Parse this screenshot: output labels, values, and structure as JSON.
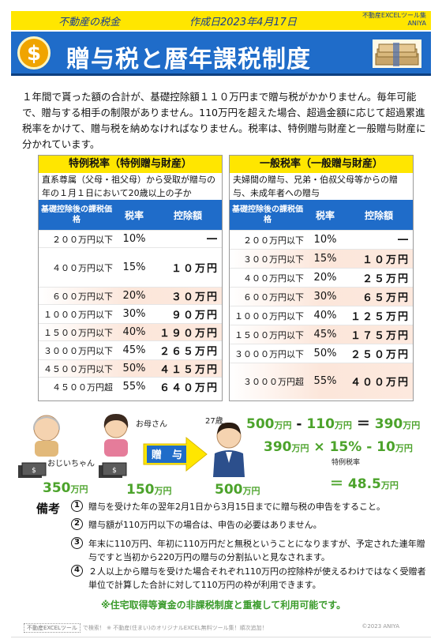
{
  "header": {
    "category": "不動産の税金",
    "date": "作成日2023年4月17日",
    "brand_line1": "不動産EXCELツール集",
    "brand_line2": "ANIYA",
    "title": "贈与税と暦年課税制度",
    "coin_symbol": "$"
  },
  "intro": "１年間で貰った額の合計が、基礎控除額１１０万円まで贈与税がかかりません。毎年可能で、贈与する相手の制限がありません。110万円を超えた場合、超過金額に応じて超過累進税率をかけて、贈与税を納めなければなりません。税率は、特例贈与財産と一般贈与財産に分かれています。",
  "tables": {
    "special": {
      "title": "特例税率（特例贈与財産）",
      "subtitle": "直系尊属（父母・祖父母）から受取が贈与の年の１月１日において20歳以上の子か",
      "col1": "基礎控除後の課税価格",
      "col2": "税率",
      "col3": "控除額",
      "rows": [
        {
          "price": "２００万円以下",
          "rate": "10%",
          "deduct": "―"
        },
        {
          "price": "４００万円以下",
          "rate": "15%",
          "deduct": "１０万円"
        },
        {
          "price": "６００万円以下",
          "rate": "20%",
          "deduct": "３０万円"
        },
        {
          "price": "１０００万円以下",
          "rate": "30%",
          "deduct": "９０万円"
        },
        {
          "price": "１５００万円以下",
          "rate": "40%",
          "deduct": "１９０万円"
        },
        {
          "price": "３０００万円以下",
          "rate": "45%",
          "deduct": "２６５万円"
        },
        {
          "price": "４５００万円以下",
          "rate": "50%",
          "deduct": "４１５万円"
        },
        {
          "price": "４５００万円超",
          "rate": "55%",
          "deduct": "６４０万円"
        }
      ]
    },
    "general": {
      "title": "一般税率（一般贈与財産）",
      "subtitle": "夫婦間の贈与、兄弟・伯叔父母等からの贈与、未成年者への贈与",
      "col1": "基礎控除後の課税価格",
      "col2": "税率",
      "col3": "控除額",
      "rows": [
        {
          "price": "２００万円以下",
          "rate": "10%",
          "deduct": "―"
        },
        {
          "price": "３００万円以下",
          "rate": "15%",
          "deduct": "１０万円"
        },
        {
          "price": "４００万円以下",
          "rate": "20%",
          "deduct": "２５万円"
        },
        {
          "price": "６００万円以下",
          "rate": "30%",
          "deduct": "６５万円"
        },
        {
          "price": "１０００万円以下",
          "rate": "40%",
          "deduct": "１２５万円"
        },
        {
          "price": "１５００万円以下",
          "rate": "45%",
          "deduct": "１７５万円"
        },
        {
          "price": "３０００万円以下",
          "rate": "50%",
          "deduct": "２５０万円"
        },
        {
          "price": "３０００万円超",
          "rate": "55%",
          "deduct": "４００万円"
        }
      ]
    }
  },
  "illustration": {
    "grandpa_label": "おじいちゃん",
    "mother_label": "お母さん",
    "child_label": "27歳",
    "gift_label": "贈　与",
    "grandpa_amount": "350",
    "mother_amount": "150",
    "child_amount": "500",
    "unit": "万円",
    "calc1_a": "500",
    "calc1_op": " - ",
    "calc1_b": "110",
    "calc1_eq": " ＝ ",
    "calc1_r": "390",
    "calc2_a": "390",
    "calc2_x": " × 15% - 10",
    "calc2_note": "特例税率",
    "calc3": "＝ 48.5"
  },
  "notes": {
    "title": "備考",
    "items": [
      {
        "num": "1",
        "text": "贈与を受けた年の翌年2月1日から3月15日までに贈与税の申告をすること。"
      },
      {
        "num": "2",
        "text": "贈与額が110万円以下の場合は、申告の必要はありません。"
      },
      {
        "num": "3",
        "text": "年末に110万円、年初に110万円だと無税ということになりますが、予定された連年贈与ですと当初から220万円の贈与の分割払いと見なされます。"
      },
      {
        "num": "4",
        "text": "２人以上から贈与を受けた場合それぞれ110万円の控除枠が使えるわけではなく受贈者単位で計算した合計に対して110万円の枠が利用できます。"
      }
    ],
    "special": "※住宅取得等資金の非課税制度と重複して利用可能です。"
  },
  "footer": {
    "search_box": "不動産EXCELツール",
    "text": "で検索！ ※ 不動産(住まい)のオリジナルEXCEL無料ツール集！順次追加！",
    "copyright": "©2023 ANIYA"
  },
  "colors": {
    "yellow": "#ffe600",
    "blue": "#1f6cc9",
    "green": "#4ca32b"
  }
}
